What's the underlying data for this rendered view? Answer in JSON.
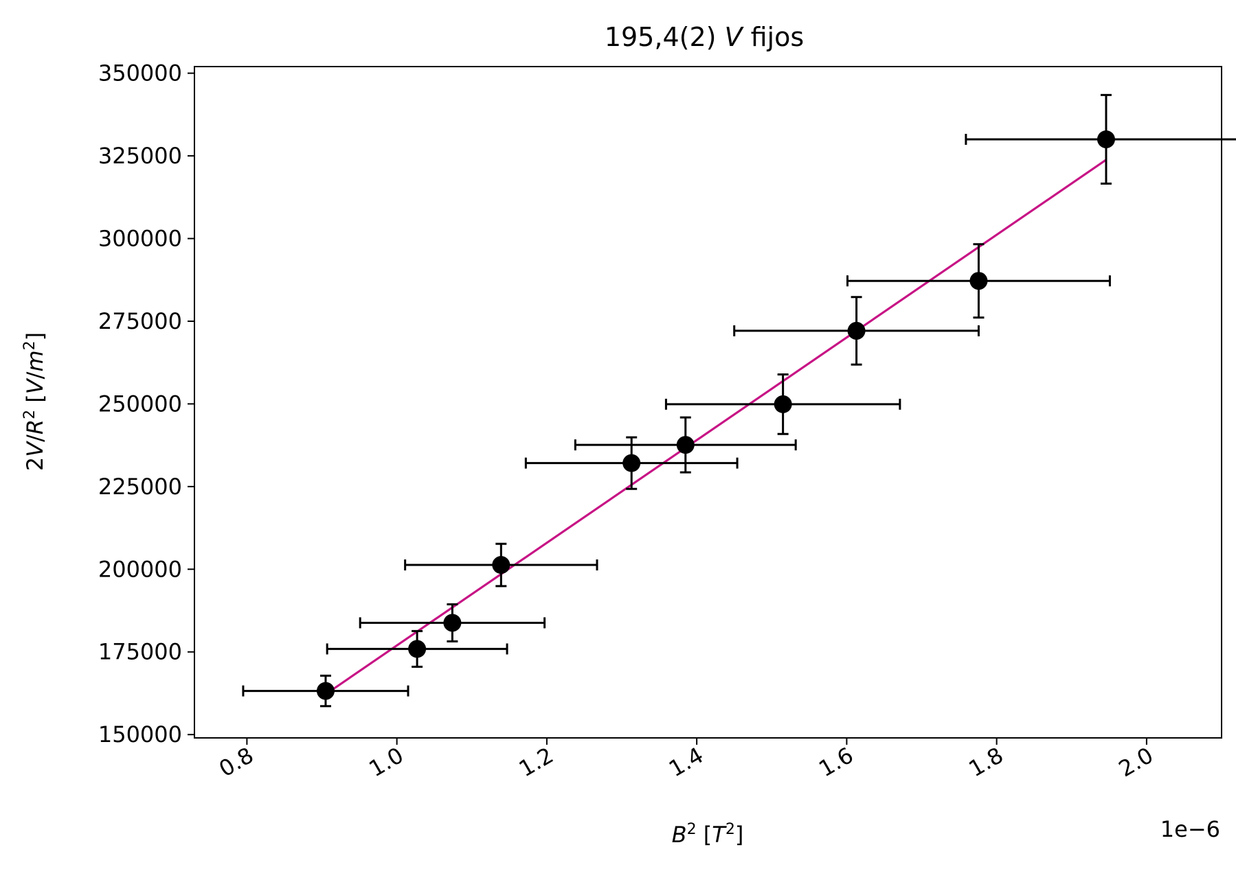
{
  "chart_data": {
    "type": "scatter",
    "title_parts": [
      "195,4(2) ",
      "V",
      " fijos"
    ],
    "xlabel": "B² [T²]",
    "ylabel": "2V/R² [V/m²]",
    "x_offset_text": "1e−6",
    "x_scale": 1e-06,
    "xlim": [
      0.73,
      2.1
    ],
    "ylim": [
      149000,
      352000
    ],
    "x_ticks": [
      0.8,
      1.0,
      1.2,
      1.4,
      1.6,
      1.8,
      2.0
    ],
    "x_tick_labels": [
      "0.8",
      "1.0",
      "1.2",
      "1.4",
      "1.6",
      "1.8",
      "2.0"
    ],
    "y_ticks": [
      150000,
      175000,
      200000,
      225000,
      250000,
      275000,
      300000,
      325000,
      350000
    ],
    "y_tick_labels": [
      "150000",
      "175000",
      "200000",
      "225000",
      "250000",
      "275000",
      "300000",
      "325000",
      "350000"
    ],
    "grid": false,
    "series": [
      {
        "marker_color": "#000000",
        "points": [
          {
            "x": 0.905,
            "y": 163200,
            "xerr": 0.11,
            "yerr": 4600
          },
          {
            "x": 1.027,
            "y": 175900,
            "xerr": 0.12,
            "yerr": 5400
          },
          {
            "x": 1.074,
            "y": 183800,
            "xerr": 0.123,
            "yerr": 5600
          },
          {
            "x": 1.139,
            "y": 201300,
            "xerr": 0.128,
            "yerr": 6400
          },
          {
            "x": 1.313,
            "y": 232100,
            "xerr": 0.141,
            "yerr": 7800
          },
          {
            "x": 1.385,
            "y": 237600,
            "xerr": 0.147,
            "yerr": 8300
          },
          {
            "x": 1.515,
            "y": 249900,
            "xerr": 0.156,
            "yerr": 9000
          },
          {
            "x": 1.613,
            "y": 272100,
            "xerr": 0.163,
            "yerr": 10200
          },
          {
            "x": 1.776,
            "y": 287200,
            "xerr": 0.175,
            "yerr": 11100
          },
          {
            "x": 1.946,
            "y": 330000,
            "xerr": 0.187,
            "yerr": 13400
          }
        ]
      }
    ],
    "fit_line": {
      "color": "#c71585",
      "x": [
        0.905,
        1.946
      ],
      "y": [
        162200,
        323800
      ]
    }
  }
}
